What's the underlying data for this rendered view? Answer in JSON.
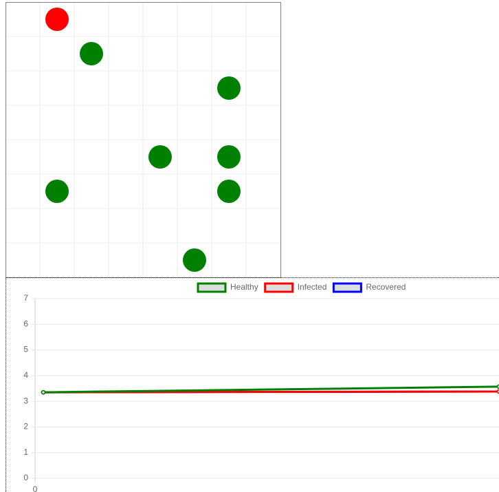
{
  "grid": {
    "columns": 8,
    "rows": 8,
    "agents": [
      {
        "col": 1,
        "row": 0,
        "color": "#ff0000"
      },
      {
        "col": 2,
        "row": 1,
        "color": "#008000"
      },
      {
        "col": 6,
        "row": 2,
        "color": "#008000"
      },
      {
        "col": 4,
        "row": 4,
        "color": "#008000"
      },
      {
        "col": 6,
        "row": 4,
        "color": "#008000"
      },
      {
        "col": 1,
        "row": 5,
        "color": "#008000"
      },
      {
        "col": 6,
        "row": 5,
        "color": "#008000"
      },
      {
        "col": 5,
        "row": 7,
        "color": "#008000"
      }
    ]
  },
  "chart_data": {
    "type": "line",
    "categories": [
      "0",
      null
    ],
    "series": [
      {
        "name": "Healthy",
        "color": "#008000",
        "values": [
          3.35,
          3.57
        ]
      },
      {
        "name": "Infected",
        "color": "#ff0000",
        "values": [
          3.35,
          3.38
        ]
      },
      {
        "name": "Recovered",
        "color": "#0000ff",
        "values": [
          3.35,
          3.38
        ]
      }
    ],
    "ylim": [
      0,
      7
    ],
    "yticks": [
      0,
      1,
      2,
      3,
      4,
      5,
      6,
      7
    ],
    "grid": true,
    "legend": "top"
  }
}
